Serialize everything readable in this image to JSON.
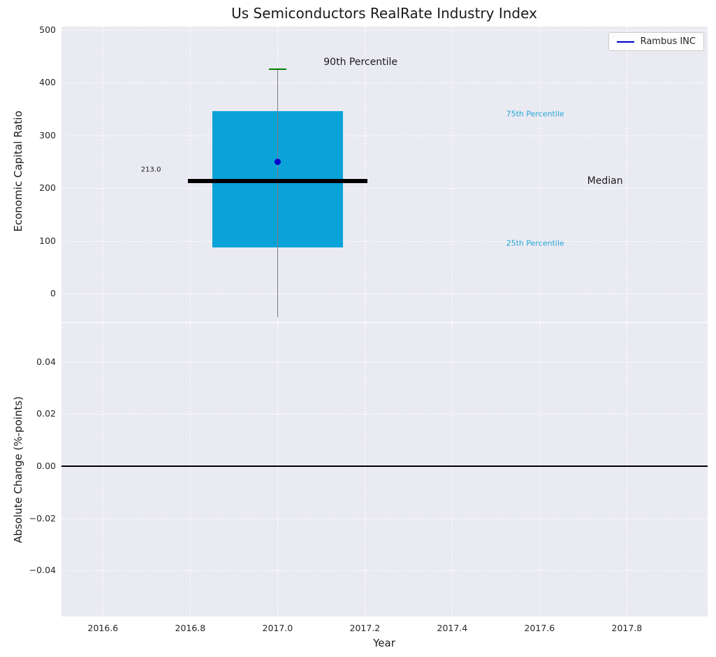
{
  "chart_data": {
    "type": "boxplot",
    "title": "Us Semiconductors RealRate Industry Index",
    "xlabel": "Year",
    "xlim": [
      2016.505,
      2017.985
    ],
    "x_ticks": [
      {
        "value": 2016.6,
        "label": "2016.6"
      },
      {
        "value": 2016.8,
        "label": "2016.8"
      },
      {
        "value": 2017.0,
        "label": "2017.0"
      },
      {
        "value": 2017.2,
        "label": "2017.2"
      },
      {
        "value": 2017.4,
        "label": "2017.4"
      },
      {
        "value": 2017.6,
        "label": "2017.6"
      },
      {
        "value": 2017.8,
        "label": "2017.8"
      }
    ],
    "legend": {
      "label": "Rambus INC",
      "color": "#0000cc"
    },
    "top_plot": {
      "ylabel": "Economic Capital Ratio",
      "ylim": [
        -54,
        506
      ],
      "y_ticks": [
        {
          "value": 0,
          "label": "0"
        },
        {
          "value": 100,
          "label": "100"
        },
        {
          "value": 200,
          "label": "200"
        },
        {
          "value": 300,
          "label": "300"
        },
        {
          "value": 400,
          "label": "400"
        },
        {
          "value": 500,
          "label": "500"
        }
      ],
      "box": {
        "x_center": 2017.0,
        "box_half_width": 0.15,
        "median_half_width": 0.205,
        "cap_half_width": 0.02,
        "p90": 425,
        "p75": 346,
        "median": 213.0,
        "p25": 88,
        "whisker_low": -45,
        "box_color": "#0aa3d8",
        "median_color": "#000000",
        "whisker_color": "#7f7f7f",
        "cap_color": "#008000",
        "median_line_width": 6,
        "cap_line_width": 2
      },
      "company_point": {
        "label": "Rambus INC",
        "x": 2017.0,
        "y": 250,
        "color": "#0000cc"
      },
      "annotations": {
        "p90": {
          "text": "90th Percentile",
          "x": 2017.19,
          "y": 438,
          "color": "#1a1a1a",
          "size": 14
        },
        "p75": {
          "text": "75th Percentile",
          "x": 2017.59,
          "y": 340,
          "color": "#22a7d5",
          "size": 11
        },
        "p25": {
          "text": "25th Percentile",
          "x": 2017.59,
          "y": 96,
          "color": "#22a7d5",
          "size": 11
        },
        "median": {
          "text": "Median",
          "x": 2017.75,
          "y": 213,
          "color": "#1a1a1a",
          "size": 14
        },
        "median_value": {
          "text": "213.0",
          "x": 2016.71,
          "y": 234,
          "color": "#1a1a1a",
          "size": 10
        }
      }
    },
    "bottom_plot": {
      "ylabel": "Absolute Change (%-points)",
      "ylim": [
        -0.0577,
        0.055
      ],
      "y_ticks": [
        {
          "value": 0.04,
          "label": "0.04"
        },
        {
          "value": 0.02,
          "label": "0.02"
        },
        {
          "value": 0.0,
          "label": "0.00"
        },
        {
          "value": -0.02,
          "label": "−0.02"
        },
        {
          "value": -0.04,
          "label": "−0.04"
        }
      ],
      "zero_line": 0.0
    },
    "style": {
      "axes_bg": "#eaeaf2",
      "grid_color": "rgba(255,255,255,0.9)",
      "tick_color": "#262626",
      "text_color": "#1a1a1a"
    }
  }
}
